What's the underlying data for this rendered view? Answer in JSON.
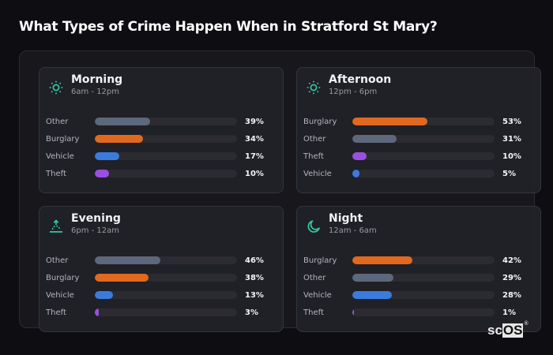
{
  "page": {
    "title": "What Types of Crime Happen When in Stratford St Mary?"
  },
  "colors": {
    "accent": "#2fc59c",
    "Other": "#5e687c",
    "Burglary": "#e0691f",
    "Vehicle": "#3b7bdd",
    "Theft": "#9b4fe0"
  },
  "cards": [
    {
      "id": "morning",
      "icon": "sun-icon",
      "title": "Morning",
      "range": "6am - 12pm",
      "rows": [
        {
          "label": "Other",
          "value": 39,
          "pct": "39%"
        },
        {
          "label": "Burglary",
          "value": 34,
          "pct": "34%"
        },
        {
          "label": "Vehicle",
          "value": 17,
          "pct": "17%"
        },
        {
          "label": "Theft",
          "value": 10,
          "pct": "10%"
        }
      ]
    },
    {
      "id": "afternoon",
      "icon": "sun-icon",
      "title": "Afternoon",
      "range": "12pm - 6pm",
      "rows": [
        {
          "label": "Burglary",
          "value": 53,
          "pct": "53%"
        },
        {
          "label": "Other",
          "value": 31,
          "pct": "31%"
        },
        {
          "label": "Theft",
          "value": 10,
          "pct": "10%"
        },
        {
          "label": "Vehicle",
          "value": 5,
          "pct": "5%"
        }
      ]
    },
    {
      "id": "evening",
      "icon": "sunset-icon",
      "title": "Evening",
      "range": "6pm - 12am",
      "rows": [
        {
          "label": "Other",
          "value": 46,
          "pct": "46%"
        },
        {
          "label": "Burglary",
          "value": 38,
          "pct": "38%"
        },
        {
          "label": "Vehicle",
          "value": 13,
          "pct": "13%"
        },
        {
          "label": "Theft",
          "value": 3,
          "pct": "3%"
        }
      ]
    },
    {
      "id": "night",
      "icon": "moon-icon",
      "title": "Night",
      "range": "12am - 6am",
      "rows": [
        {
          "label": "Burglary",
          "value": 42,
          "pct": "42%"
        },
        {
          "label": "Other",
          "value": 29,
          "pct": "29%"
        },
        {
          "label": "Vehicle",
          "value": 28,
          "pct": "28%"
        },
        {
          "label": "Theft",
          "value": 1,
          "pct": "1%"
        }
      ]
    }
  ],
  "logo": {
    "sc": "sc",
    "os": "OS",
    "reg": "®"
  }
}
